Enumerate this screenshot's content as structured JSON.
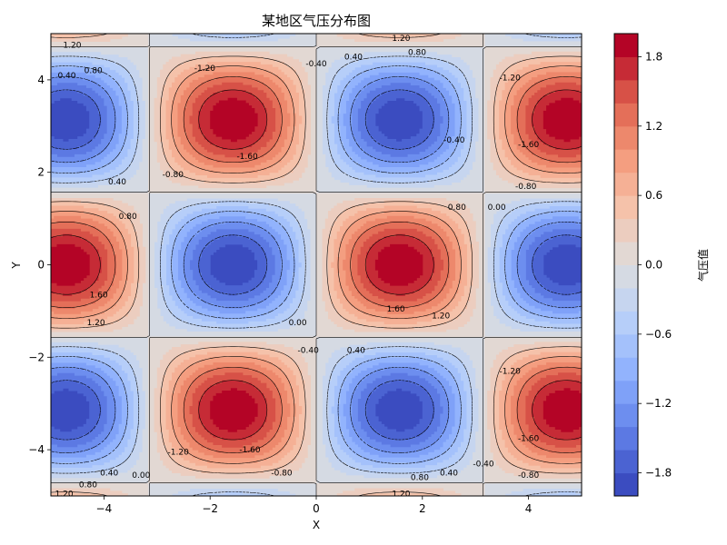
{
  "chart_data": {
    "type": "contour",
    "title": "某地区气压分布图",
    "xlabel": "X",
    "ylabel": "Y",
    "function": "sin(x) * cos(y) * 2",
    "x_range": [
      -5,
      5
    ],
    "y_range": [
      -5,
      5
    ],
    "x_ticks": [
      -4,
      -2,
      0,
      2,
      4
    ],
    "y_ticks": [
      -4,
      -2,
      0,
      2,
      4
    ],
    "fill_levels": [
      -2.0,
      -1.8,
      -1.6,
      -1.4,
      -1.2,
      -1.0,
      -0.8,
      -0.6,
      -0.4,
      -0.2,
      0.0,
      0.2,
      0.4,
      0.6,
      0.8,
      1.0,
      1.2,
      1.4,
      1.6,
      1.8,
      2.0
    ],
    "line_levels": [
      -1.6,
      -1.2,
      -0.8,
      -0.4,
      0.0,
      0.4,
      0.8,
      1.2,
      1.6
    ],
    "colormap": "coolwarm",
    "colorbar": {
      "label": "气压值",
      "ticks": [
        1.8,
        1.2,
        0.6,
        0.0,
        -0.6,
        -1.2,
        -1.8
      ],
      "tick_labels": [
        "1.8",
        "1.2",
        "0.6",
        "0.0",
        "−0.6",
        "−1.2",
        "−1.8"
      ],
      "range": [
        -2.0,
        2.0
      ]
    },
    "contour_labels": [
      {
        "text": "1.20",
        "x": -4.6,
        "y": 4.75
      },
      {
        "text": "0.80",
        "x": -4.2,
        "y": 4.2
      },
      {
        "text": "0.40",
        "x": -4.7,
        "y": 4.1
      },
      {
        "text": "1.20",
        "x": 1.6,
        "y": 4.9
      },
      {
        "text": "0.80",
        "x": 1.9,
        "y": 4.6
      },
      {
        "text": "0.40",
        "x": 0.7,
        "y": 4.5
      },
      {
        "text": "-0.40",
        "x": 0.0,
        "y": 4.35
      },
      {
        "text": "-1.20",
        "x": -2.1,
        "y": 4.25
      },
      {
        "text": "-1.20",
        "x": 3.65,
        "y": 4.05
      },
      {
        "text": "-1.60",
        "x": -1.3,
        "y": 2.35
      },
      {
        "text": "-0.80",
        "x": -2.7,
        "y": 1.95
      },
      {
        "text": "-0.40",
        "x": 2.6,
        "y": 2.7
      },
      {
        "text": "-1.60",
        "x": 4.0,
        "y": 2.6
      },
      {
        "text": "-0.80",
        "x": 3.95,
        "y": 1.7
      },
      {
        "text": "0.00",
        "x": 3.4,
        "y": 1.25
      },
      {
        "text": "0.40",
        "x": -3.75,
        "y": 1.8
      },
      {
        "text": "0.80",
        "x": -3.55,
        "y": 1.05
      },
      {
        "text": "0.80",
        "x": 2.65,
        "y": 1.25
      },
      {
        "text": "1.60",
        "x": -4.1,
        "y": -0.65
      },
      {
        "text": "1.20",
        "x": -4.15,
        "y": -1.25
      },
      {
        "text": "1.60",
        "x": 1.5,
        "y": -0.95
      },
      {
        "text": "1.20",
        "x": 2.35,
        "y": -1.1
      },
      {
        "text": "0.00",
        "x": -0.35,
        "y": -1.25
      },
      {
        "text": "-0.40",
        "x": -0.15,
        "y": -1.85
      },
      {
        "text": "0.40",
        "x": 0.75,
        "y": -1.85
      },
      {
        "text": "-1.20",
        "x": 3.65,
        "y": -2.3
      },
      {
        "text": "-1.60",
        "x": 4.0,
        "y": -3.75
      },
      {
        "text": "-1.20",
        "x": -2.6,
        "y": -4.05
      },
      {
        "text": "-1.60",
        "x": -1.25,
        "y": -4.0
      },
      {
        "text": "-0.40",
        "x": 3.15,
        "y": -4.3
      },
      {
        "text": "-0.80",
        "x": 4.0,
        "y": -4.55
      },
      {
        "text": "-0.80",
        "x": -0.65,
        "y": -4.5
      },
      {
        "text": "0.40",
        "x": -3.9,
        "y": -4.5
      },
      {
        "text": "0.00",
        "x": -3.3,
        "y": -4.55
      },
      {
        "text": "0.80",
        "x": -4.3,
        "y": -4.75
      },
      {
        "text": "0.80",
        "x": 1.95,
        "y": -4.6
      },
      {
        "text": "0.40",
        "x": 2.5,
        "y": -4.5
      },
      {
        "text": "1.20",
        "x": -4.75,
        "y": -4.95
      },
      {
        "text": "1.20",
        "x": 1.6,
        "y": -4.95
      }
    ]
  }
}
